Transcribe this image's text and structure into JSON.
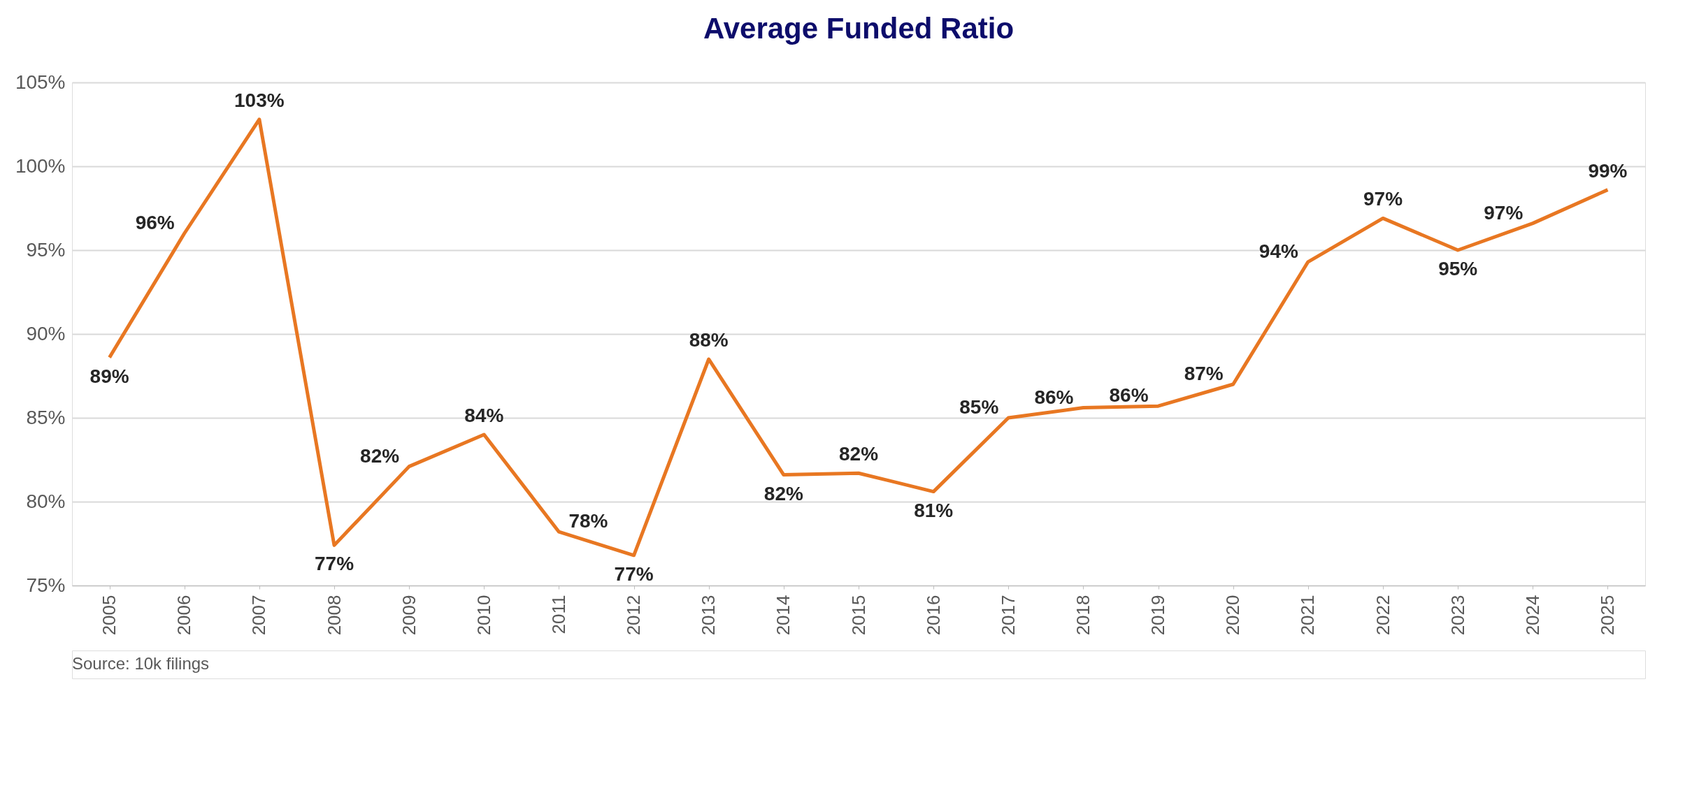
{
  "chart_data": {
    "type": "line",
    "title": "Average Funded Ratio",
    "categories": [
      "2005",
      "2006",
      "2007",
      "2008",
      "2009",
      "2010",
      "2011",
      "2012",
      "2013",
      "2014",
      "2015",
      "2016",
      "2017",
      "2018",
      "2019",
      "2020",
      "2021",
      "2022",
      "2023",
      "2024",
      "2025"
    ],
    "series": [
      {
        "color": "#e87722",
        "values": [
          88.6,
          96.0,
          102.8,
          77.4,
          82.1,
          84.0,
          78.2,
          76.8,
          88.5,
          81.6,
          81.7,
          80.6,
          85.0,
          85.6,
          85.7,
          87.0,
          94.3,
          96.9,
          95.0,
          96.6,
          98.6
        ],
        "value_labels": [
          "89%",
          "96%",
          "103%",
          "77%",
          "82%",
          "84%",
          "78%",
          "77%",
          "88%",
          "82%",
          "82%",
          "81%",
          "85%",
          "86%",
          "86%",
          "87%",
          "94%",
          "97%",
          "95%",
          "97%",
          "99%"
        ]
      }
    ],
    "ylim": [
      75,
      105
    ],
    "yticks": [
      {
        "value": 75,
        "label": "75%"
      },
      {
        "value": 80,
        "label": "80%"
      },
      {
        "value": 85,
        "label": "85%"
      },
      {
        "value": 90,
        "label": "90%"
      },
      {
        "value": 95,
        "label": "95%"
      },
      {
        "value": 100,
        "label": "100%"
      },
      {
        "value": 105,
        "label": "105%"
      }
    ],
    "grid": "y",
    "marker": "none",
    "line_style": "solid",
    "annotations": [
      "Source: 10k filings"
    ]
  }
}
